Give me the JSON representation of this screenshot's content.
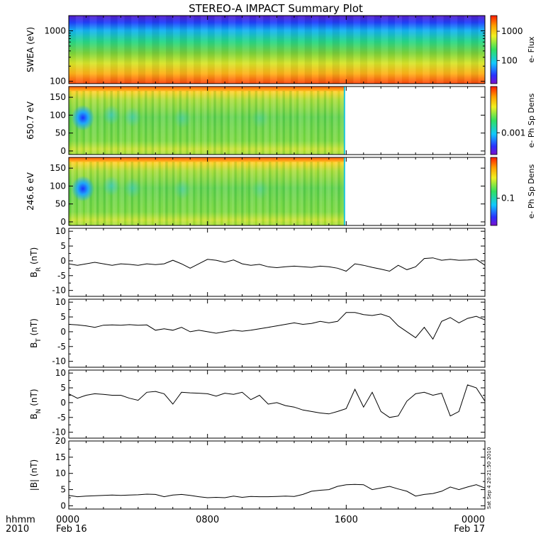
{
  "title": "STEREO-A IMPACT Summary Plot",
  "side_stamp": "Sat Sep  4 20:21:50 2010",
  "x_axis": {
    "corner_labels": [
      "hhmm",
      "2010"
    ],
    "ticks": [
      {
        "hours": 0,
        "time": "0000",
        "date": "Feb 16"
      },
      {
        "hours": 8,
        "time": "0800",
        "date": ""
      },
      {
        "hours": 16,
        "time": "1600",
        "date": ""
      },
      {
        "hours": 24,
        "time": "0000",
        "date": "Feb 17"
      }
    ]
  },
  "chart_data": [
    {
      "type": "heatmap",
      "name": "swea",
      "ylabel": "SWEA (eV)",
      "yscale": "log",
      "ylim": [
        90,
        2000
      ],
      "yticks": [
        {
          "v": 100,
          "label": "100"
        },
        {
          "v": 1000,
          "label": "1000"
        }
      ],
      "colorbar_label": "e- Flux",
      "colorbar_ticks": [
        "100",
        "1000"
      ],
      "data_end_hours": 24
    },
    {
      "type": "heatmap",
      "name": "pad650",
      "ylabel": "650.7 eV",
      "yscale": "linear",
      "ylim": [
        -10,
        180
      ],
      "yticks": [
        {
          "v": 0,
          "label": "0"
        },
        {
          "v": 50,
          "label": "50"
        },
        {
          "v": 100,
          "label": "100"
        },
        {
          "v": 150,
          "label": "150"
        }
      ],
      "colorbar_label": "e- Ph Sp Dens",
      "colorbar_ticks": [
        "0.001"
      ],
      "data_end_hours": 15.9
    },
    {
      "type": "heatmap",
      "name": "pad246",
      "ylabel": "246.6 eV",
      "yscale": "linear",
      "ylim": [
        -10,
        180
      ],
      "yticks": [
        {
          "v": 0,
          "label": "0"
        },
        {
          "v": 50,
          "label": "50"
        },
        {
          "v": 100,
          "label": "100"
        },
        {
          "v": 150,
          "label": "150"
        }
      ],
      "colorbar_label": "e- Ph Sp Dens",
      "colorbar_ticks": [
        "0.1"
      ],
      "data_end_hours": 15.9
    },
    {
      "type": "line",
      "name": "BR",
      "ylabel_main": "B",
      "ylabel_sub": "R",
      "ylabel_unit": " (nT)",
      "ylim": [
        -12,
        11
      ],
      "yticks": [
        -10,
        -5,
        0,
        5,
        10
      ],
      "x": [
        0,
        0.5,
        1,
        1.5,
        2,
        2.5,
        3,
        3.5,
        4,
        4.5,
        5,
        5.5,
        6,
        6.5,
        7,
        7.5,
        8,
        8.5,
        9,
        9.5,
        10,
        10.5,
        11,
        11.5,
        12,
        12.5,
        13,
        13.5,
        14,
        14.5,
        15,
        15.5,
        16,
        16.5,
        17,
        17.5,
        18,
        18.5,
        19,
        19.5,
        20,
        20.5,
        21,
        21.5,
        22,
        22.5,
        23,
        23.5,
        24
      ],
      "y": [
        -1,
        -1.5,
        -1,
        -0.5,
        -1,
        -1.5,
        -1,
        -1.2,
        -1.5,
        -1,
        -1.3,
        -1,
        0.2,
        -1,
        -2.5,
        -1,
        0.5,
        0.2,
        -0.5,
        0.3,
        -1,
        -1.5,
        -1.2,
        -2,
        -2.3,
        -2,
        -1.8,
        -2,
        -2.2,
        -1.8,
        -2,
        -2.5,
        -3.5,
        -1,
        -1.5,
        -2.2,
        -2.8,
        -3.5,
        -1.5,
        -3,
        -2,
        0.8,
        1,
        0.2,
        0.5,
        0.2,
        0.3,
        0.5,
        -1.5
      ]
    },
    {
      "type": "line",
      "name": "BT",
      "ylabel_main": "B",
      "ylabel_sub": "T",
      "ylabel_unit": " (nT)",
      "ylim": [
        -12,
        11
      ],
      "yticks": [
        -10,
        -5,
        0,
        5,
        10
      ],
      "x": [
        0,
        0.5,
        1,
        1.5,
        2,
        2.5,
        3,
        3.5,
        4,
        4.5,
        5,
        5.5,
        6,
        6.5,
        7,
        7.5,
        8,
        8.5,
        9,
        9.5,
        10,
        10.5,
        11,
        11.5,
        12,
        12.5,
        13,
        13.5,
        14,
        14.5,
        15,
        15.5,
        16,
        16.5,
        17,
        17.5,
        18,
        18.5,
        19,
        19.5,
        20,
        20.5,
        21,
        21.5,
        22,
        22.5,
        23,
        23.5,
        24
      ],
      "y": [
        2.5,
        2.3,
        2,
        1.5,
        2.2,
        2.3,
        2.2,
        2.4,
        2.2,
        2.3,
        0.5,
        1,
        0.5,
        1.5,
        0,
        0.5,
        0,
        -0.5,
        0,
        0.5,
        0.2,
        0.5,
        1,
        1.5,
        2,
        2.5,
        3,
        2.5,
        2.8,
        3.5,
        3,
        3.5,
        6.5,
        6.5,
        5.8,
        5.5,
        6,
        5,
        2,
        0,
        -2,
        1.5,
        -2.5,
        3.5,
        4.8,
        3,
        4.5,
        5.2,
        4
      ]
    },
    {
      "type": "line",
      "name": "BN",
      "ylabel_main": "B",
      "ylabel_sub": "N",
      "ylabel_unit": " (nT)",
      "ylim": [
        -12,
        11
      ],
      "yticks": [
        -10,
        -5,
        0,
        5,
        10
      ],
      "x": [
        0,
        0.5,
        1,
        1.5,
        2,
        2.5,
        3,
        3.5,
        4,
        4.5,
        5,
        5.5,
        6,
        6.5,
        7,
        7.5,
        8,
        8.5,
        9,
        9.5,
        10,
        10.5,
        11,
        11.5,
        12,
        12.5,
        13,
        13.5,
        14,
        14.5,
        15,
        15.5,
        16,
        16.5,
        17,
        17.5,
        18,
        18.5,
        19,
        19.5,
        20,
        20.5,
        21,
        21.5,
        22,
        22.5,
        23,
        23.5,
        24
      ],
      "y": [
        3,
        1.5,
        2.5,
        3,
        2.8,
        2.5,
        2.5,
        1.5,
        0.8,
        3.5,
        3.8,
        3,
        -0.5,
        3.5,
        3.3,
        3.2,
        3,
        2.2,
        3.2,
        2.8,
        3.5,
        1,
        2.5,
        -0.5,
        0,
        -1,
        -1.5,
        -2.5,
        -3,
        -3.5,
        -3.8,
        -3,
        -2,
        4.5,
        -1.5,
        3.5,
        -3,
        -5,
        -4.5,
        0.5,
        3,
        3.5,
        2.5,
        3.2,
        -4.5,
        -3,
        6,
        5,
        0.5
      ]
    },
    {
      "type": "line",
      "name": "B",
      "ylabel_main": "|B| (nT)",
      "ylabel_sub": "",
      "ylabel_unit": "",
      "ylim": [
        -1,
        20
      ],
      "yticks": [
        0,
        5,
        10,
        15,
        20
      ],
      "x": [
        0,
        0.5,
        1,
        1.5,
        2,
        2.5,
        3,
        3.5,
        4,
        4.5,
        5,
        5.5,
        6,
        6.5,
        7,
        7.5,
        8,
        8.5,
        9,
        9.5,
        10,
        10.5,
        11,
        11.5,
        12,
        12.5,
        13,
        13.5,
        14,
        14.5,
        15,
        15.5,
        16,
        16.5,
        17,
        17.5,
        18,
        18.5,
        19,
        19.5,
        20,
        20.5,
        21,
        21.5,
        22,
        22.5,
        23,
        23.5,
        24
      ],
      "y": [
        3.2,
        2.8,
        3,
        3.1,
        3.2,
        3.3,
        3.2,
        3.3,
        3.4,
        3.6,
        3.5,
        2.8,
        3.3,
        3.5,
        3.2,
        2.8,
        2.5,
        2.6,
        2.5,
        3,
        2.6,
        2.9,
        2.8,
        2.8,
        2.9,
        3,
        2.9,
        3.5,
        4.5,
        4.8,
        5,
        6,
        6.5,
        6.6,
        6.5,
        5,
        5.5,
        6,
        5.2,
        4.5,
        3,
        3.5,
        3.8,
        4.5,
        5.8,
        5,
        5.8,
        6.5,
        5.5
      ]
    }
  ]
}
